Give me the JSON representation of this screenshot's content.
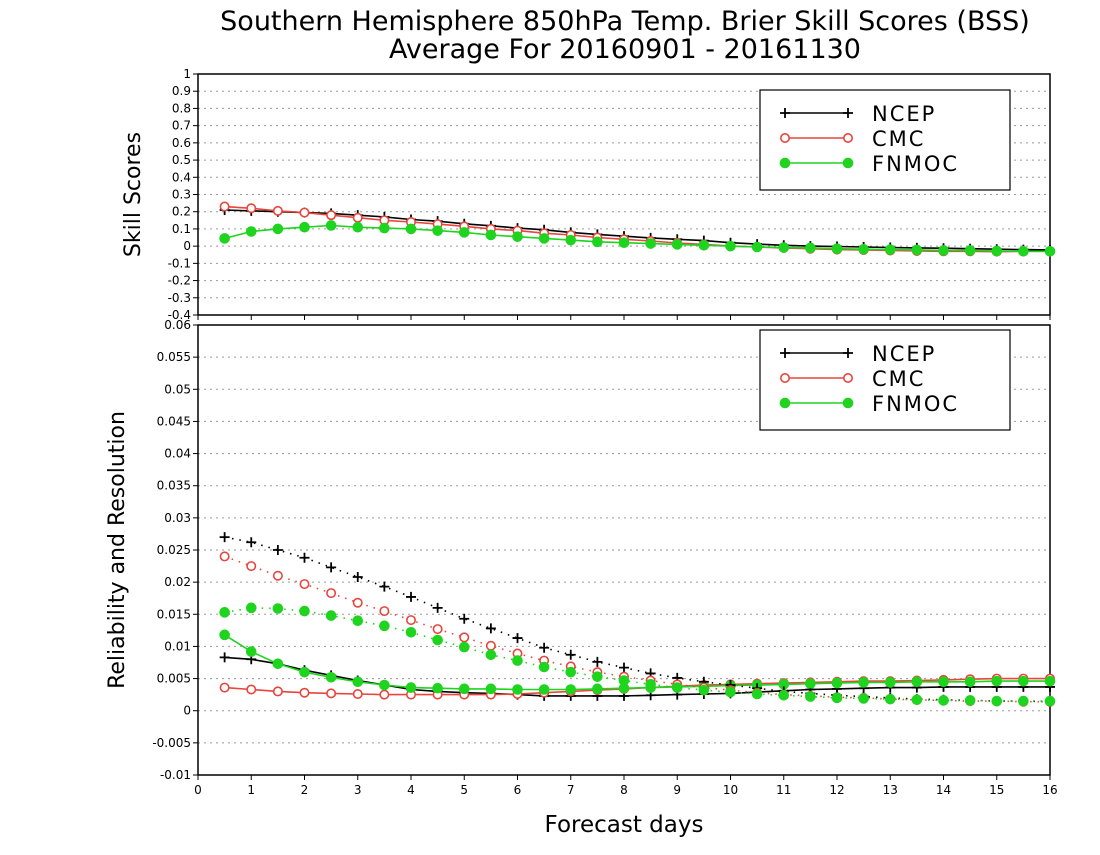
{
  "title": {
    "line1": "Southern Hemisphere 850hPa Temp. Brier Skill Scores (BSS)",
    "line2": "Average For 20160901 - 20161130"
  },
  "colors": {
    "NCEP": "#000000",
    "CMC": "#e8453c",
    "FNMOC": "#1ed41e"
  },
  "chart_data": [
    {
      "type": "line",
      "ylabel": "Skill Scores",
      "xlim": [
        0,
        16
      ],
      "ylim": [
        -0.4,
        1
      ],
      "yticks": [
        "-0.4",
        "-0.3",
        "-0.2",
        "-0.1",
        "0",
        "0.1",
        "0.2",
        "0.3",
        "0.4",
        "0.5",
        "0.6",
        "0.7",
        "0.8",
        "0.9",
        "1"
      ],
      "grid": true,
      "legend_position": "top-right",
      "legend": [
        "NCEP",
        "CMC",
        "FNMOC"
      ],
      "x": [
        0.5,
        1,
        1.5,
        2,
        2.5,
        3,
        3.5,
        4,
        4.5,
        5,
        5.5,
        6,
        6.5,
        7,
        7.5,
        8,
        8.5,
        9,
        9.5,
        10,
        10.5,
        11,
        11.5,
        12,
        12.5,
        13,
        13.5,
        14,
        14.5,
        15,
        15.5,
        16
      ],
      "series": [
        {
          "name": "NCEP",
          "marker": "plus",
          "style": "solid",
          "values": [
            0.21,
            0.205,
            0.2,
            0.195,
            0.19,
            0.18,
            0.17,
            0.155,
            0.145,
            0.13,
            0.118,
            0.105,
            0.095,
            0.08,
            0.068,
            0.058,
            0.048,
            0.04,
            0.032,
            0.02,
            0.012,
            0.005,
            0.0,
            -0.002,
            -0.005,
            -0.008,
            -0.01,
            -0.012,
            -0.015,
            -0.018,
            -0.02,
            -0.022
          ]
        },
        {
          "name": "CMC",
          "marker": "open-circle",
          "style": "solid",
          "values": [
            0.23,
            0.22,
            0.205,
            0.195,
            0.18,
            0.165,
            0.15,
            0.14,
            0.128,
            0.115,
            0.1,
            0.09,
            0.075,
            0.065,
            0.05,
            0.04,
            0.03,
            0.018,
            0.01,
            0.0,
            -0.005,
            -0.01,
            -0.015,
            -0.02,
            -0.022,
            -0.025,
            -0.028,
            -0.03,
            -0.03,
            -0.032,
            -0.03,
            -0.03
          ]
        },
        {
          "name": "FNMOC",
          "marker": "filled-circle",
          "style": "solid",
          "values": [
            0.045,
            0.085,
            0.1,
            0.11,
            0.12,
            0.11,
            0.105,
            0.1,
            0.09,
            0.08,
            0.065,
            0.055,
            0.045,
            0.035,
            0.025,
            0.02,
            0.015,
            0.01,
            0.005,
            0.0,
            -0.005,
            -0.008,
            -0.01,
            -0.015,
            -0.018,
            -0.02,
            -0.022,
            -0.025,
            -0.025,
            -0.028,
            -0.03,
            -0.03
          ]
        }
      ]
    },
    {
      "type": "line",
      "ylabel": "Reliability and Resolution",
      "xlabel": "Forecast days",
      "xlim": [
        0,
        16
      ],
      "ylim": [
        -0.01,
        0.06
      ],
      "xticks": [
        "0",
        "1",
        "2",
        "3",
        "4",
        "5",
        "6",
        "7",
        "8",
        "9",
        "10",
        "11",
        "12",
        "13",
        "14",
        "15",
        "16"
      ],
      "yticks": [
        "-0.01",
        "-0.005",
        "0",
        "0.005",
        "0.01",
        "0.015",
        "0.02",
        "0.025",
        "0.03",
        "0.035",
        "0.04",
        "0.045",
        "0.05",
        "0.055",
        "0.06"
      ],
      "grid": true,
      "legend_position": "top-right",
      "legend": [
        "NCEP",
        "CMC",
        "FNMOC"
      ],
      "x": [
        0.5,
        1,
        1.5,
        2,
        2.5,
        3,
        3.5,
        4,
        4.5,
        5,
        5.5,
        6,
        6.5,
        7,
        7.5,
        8,
        8.5,
        9,
        9.5,
        10,
        10.5,
        11,
        11.5,
        12,
        12.5,
        13,
        13.5,
        14,
        14.5,
        15,
        15.5,
        16
      ],
      "series": [
        {
          "name": "NCEP",
          "marker": "plus",
          "style": "solid",
          "values": [
            0.0083,
            0.008,
            0.0073,
            0.0063,
            0.0055,
            0.0047,
            0.004,
            0.0033,
            0.003,
            0.0028,
            0.0027,
            0.0025,
            0.0023,
            0.0023,
            0.0023,
            0.0023,
            0.0024,
            0.0025,
            0.0026,
            0.0027,
            0.0029,
            0.0031,
            0.0033,
            0.0034,
            0.0035,
            0.0036,
            0.0036,
            0.0037,
            0.0037,
            0.0037,
            0.0037,
            0.0037
          ]
        },
        {
          "name": "CMC",
          "marker": "open-circle",
          "style": "solid",
          "values": [
            0.0036,
            0.0033,
            0.003,
            0.0028,
            0.0027,
            0.0026,
            0.0025,
            0.0025,
            0.0025,
            0.0025,
            0.0025,
            0.0026,
            0.0028,
            0.003,
            0.0032,
            0.0034,
            0.0036,
            0.0038,
            0.004,
            0.0041,
            0.0042,
            0.0043,
            0.0044,
            0.0045,
            0.0046,
            0.0046,
            0.0047,
            0.0048,
            0.0049,
            0.005,
            0.005,
            0.005
          ]
        },
        {
          "name": "FNMOC",
          "marker": "filled-circle",
          "style": "solid",
          "values": [
            0.0118,
            0.0092,
            0.0073,
            0.006,
            0.0052,
            0.0045,
            0.004,
            0.0036,
            0.0035,
            0.0034,
            0.0034,
            0.0033,
            0.0033,
            0.0033,
            0.0034,
            0.0035,
            0.0036,
            0.0037,
            0.0038,
            0.0039,
            0.004,
            0.0041,
            0.0042,
            0.0043,
            0.0044,
            0.0044,
            0.0045,
            0.0045,
            0.0045,
            0.0046,
            0.0046,
            0.0046
          ]
        },
        {
          "name": "NCEP",
          "marker": "plus",
          "style": "dotted",
          "values": [
            0.027,
            0.0262,
            0.025,
            0.0238,
            0.0223,
            0.0208,
            0.0193,
            0.0177,
            0.016,
            0.0143,
            0.0128,
            0.0113,
            0.0098,
            0.0087,
            0.0076,
            0.0067,
            0.0058,
            0.0051,
            0.0045,
            0.004,
            0.0035,
            0.003,
            0.0027,
            0.0024,
            0.0022,
            0.002,
            0.0018,
            0.0017,
            0.0016,
            0.0015,
            0.0015,
            0.0014
          ]
        },
        {
          "name": "CMC",
          "marker": "open-circle",
          "style": "dotted",
          "values": [
            0.024,
            0.0225,
            0.021,
            0.0197,
            0.0183,
            0.0168,
            0.0155,
            0.0141,
            0.0127,
            0.0114,
            0.0101,
            0.0089,
            0.0078,
            0.0069,
            0.006,
            0.0053,
            0.0047,
            0.0041,
            0.0036,
            0.0032,
            0.0028,
            0.0025,
            0.0023,
            0.0021,
            0.002,
            0.0018,
            0.0017,
            0.0016,
            0.0015,
            0.0015,
            0.0014,
            0.0014
          ]
        },
        {
          "name": "FNMOC",
          "marker": "filled-circle",
          "style": "dotted",
          "values": [
            0.0153,
            0.016,
            0.0159,
            0.0155,
            0.0148,
            0.014,
            0.0132,
            0.0122,
            0.011,
            0.0099,
            0.0087,
            0.0078,
            0.0068,
            0.006,
            0.0053,
            0.0047,
            0.0041,
            0.0036,
            0.0032,
            0.0029,
            0.0026,
            0.0024,
            0.0022,
            0.002,
            0.0019,
            0.0018,
            0.0017,
            0.0016,
            0.0016,
            0.0015,
            0.0015,
            0.0015
          ]
        }
      ]
    }
  ]
}
